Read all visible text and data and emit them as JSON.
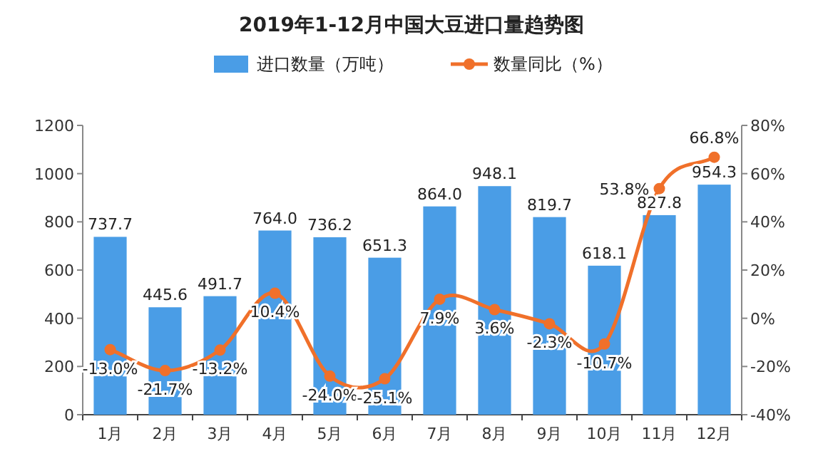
{
  "chart_data": {
    "type": "line",
    "title": "2019年1-12月中国大豆进口量趋势图",
    "categories": [
      "1月",
      "2月",
      "3月",
      "4月",
      "5月",
      "6月",
      "7月",
      "8月",
      "9月",
      "10月",
      "11月",
      "12月"
    ],
    "series": [
      {
        "name": "进口数量（万吨）",
        "type": "bar",
        "color": "#4a9de6",
        "values": [
          737.7,
          445.6,
          491.7,
          764.0,
          736.2,
          651.3,
          864.0,
          948.1,
          819.7,
          618.1,
          827.8,
          954.3
        ],
        "value_labels": [
          "737.7",
          "445.6",
          "491.7",
          "764.0",
          "736.2",
          "651.3",
          "864.0",
          "948.1",
          "819.7",
          "618.1",
          "827.8",
          "954.3"
        ]
      },
      {
        "name": "数量同比（%）",
        "axis": "y2",
        "color": "#f0702a",
        "marker": "circle",
        "values": [
          -13.0,
          -21.7,
          -13.2,
          10.4,
          -24.0,
          -25.1,
          7.9,
          3.6,
          -2.3,
          -10.7,
          53.8,
          66.8
        ],
        "value_labels": [
          "-13.0%",
          "-21.7%",
          "-13.2%",
          "10.4%",
          "-24.0%",
          "-25.1%",
          "7.9%",
          "3.6%",
          "-2.3%",
          "-10.7%",
          "53.8%",
          "66.8%"
        ]
      }
    ],
    "ylim": [
      0,
      1200
    ],
    "yticks": [
      0,
      200,
      400,
      600,
      800,
      1000,
      1200
    ],
    "y2lim": [
      -40,
      80
    ],
    "y2ticks": [
      {
        "value": -40,
        "label": "-40%"
      },
      {
        "value": -20,
        "label": "-20%"
      },
      {
        "value": 0,
        "label": "0%"
      },
      {
        "value": 20,
        "label": "20%"
      },
      {
        "value": 40,
        "label": "40%"
      },
      {
        "value": 60,
        "label": "60%"
      },
      {
        "value": 80,
        "label": "80%"
      }
    ],
    "legend": "top",
    "grid": false
  }
}
